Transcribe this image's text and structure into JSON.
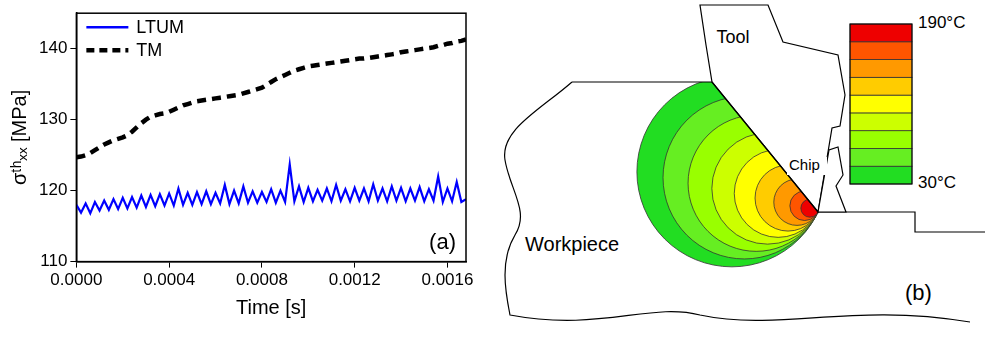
{
  "chart_data": {
    "type": "line",
    "x_label": "Time [s]",
    "y_label": "σᵗʰₓₓ [MPa]",
    "panel_label": "(a)",
    "x": [
      0,
      2e-05,
      4e-05,
      6e-05,
      8e-05,
      0.0001,
      0.00012,
      0.00014,
      0.00016,
      0.00018,
      0.0002,
      0.00022,
      0.00024,
      0.00026,
      0.00028,
      0.0003,
      0.00032,
      0.00034,
      0.00036,
      0.00038,
      0.0004,
      0.00042,
      0.00044,
      0.00046,
      0.00048,
      0.0005,
      0.00052,
      0.00054,
      0.00056,
      0.00058,
      0.0006,
      0.00062,
      0.00064,
      0.00066,
      0.00068,
      0.0007,
      0.00072,
      0.00074,
      0.00076,
      0.00078,
      0.0008,
      0.00082,
      0.00084,
      0.00086,
      0.00088,
      0.0009,
      0.00092,
      0.00094,
      0.00096,
      0.00098,
      0.001,
      0.00102,
      0.00104,
      0.00106,
      0.00108,
      0.0011,
      0.00112,
      0.00114,
      0.00116,
      0.00118,
      0.0012,
      0.00122,
      0.00124,
      0.00126,
      0.00128,
      0.0013,
      0.00132,
      0.00134,
      0.00136,
      0.00138,
      0.0014,
      0.00142,
      0.00144,
      0.00146,
      0.00148,
      0.0015,
      0.00152,
      0.00154,
      0.00156,
      0.00158,
      0.0016,
      0.00162,
      0.00164,
      0.00166,
      0.00168
    ],
    "series": [
      {
        "name": "LTUM",
        "color": "#0000ff",
        "line_style": "solid",
        "values": [
          118.0,
          116.9,
          118.2,
          116.8,
          118.4,
          117.2,
          118.6,
          117.3,
          118.8,
          117.4,
          119.0,
          117.5,
          119.1,
          117.6,
          119.3,
          117.7,
          119.4,
          117.8,
          119.5,
          117.9,
          119.6,
          117.9,
          120.3,
          118.0,
          119.7,
          118.0,
          119.8,
          118.1,
          119.9,
          118.1,
          119.7,
          118.2,
          120.8,
          118.1,
          120.0,
          118.2,
          120.6,
          118.3,
          119.9,
          118.3,
          119.8,
          118.4,
          120.2,
          118.3,
          120.0,
          118.4,
          123.7,
          118.5,
          120.6,
          118.4,
          120.4,
          118.5,
          120.1,
          118.6,
          120.3,
          118.5,
          120.8,
          118.6,
          120.2,
          118.5,
          120.4,
          118.6,
          120.3,
          118.5,
          120.9,
          118.6,
          120.3,
          118.5,
          120.6,
          118.6,
          120.4,
          118.5,
          120.3,
          118.6,
          120.5,
          118.5,
          120.2,
          118.6,
          122.0,
          118.4,
          120.3,
          118.5,
          121.2,
          118.4,
          118.8
        ]
      },
      {
        "name": "TM",
        "color": "#000000",
        "line_style": "dashed",
        "values": [
          124.7,
          124.8,
          125.0,
          125.3,
          125.7,
          126.1,
          126.5,
          126.8,
          127.1,
          127.3,
          127.5,
          127.8,
          128.3,
          128.9,
          129.5,
          130.0,
          130.4,
          130.6,
          130.8,
          130.9,
          131.1,
          131.4,
          131.7,
          132.0,
          132.2,
          132.4,
          132.6,
          132.7,
          132.8,
          132.9,
          133.0,
          133.1,
          133.2,
          133.3,
          133.4,
          133.5,
          133.7,
          133.9,
          134.1,
          134.3,
          134.5,
          134.9,
          135.3,
          135.7,
          136.0,
          136.3,
          136.6,
          136.9,
          137.1,
          137.3,
          137.5,
          137.6,
          137.7,
          137.8,
          137.9,
          138.0,
          138.1,
          138.2,
          138.3,
          138.4,
          138.5,
          138.6,
          138.6,
          138.7,
          138.8,
          138.9,
          139.0,
          139.1,
          139.2,
          139.3,
          139.5,
          139.6,
          139.7,
          139.8,
          139.9,
          140.0,
          140.1,
          140.2,
          140.4,
          140.5,
          140.7,
          140.8,
          141.0,
          141.1,
          141.3
        ]
      }
    ],
    "xlim": [
      0,
      0.00168
    ],
    "xticks": [
      {
        "value": 0,
        "label": "0.0000"
      },
      0.0004,
      0.0008,
      0.0012,
      0.0016
    ],
    "ylim": [
      110,
      145
    ],
    "yticks": [
      110,
      120,
      130,
      140
    ],
    "grid": false,
    "legend": "upper left"
  },
  "diagram": {
    "panel_label": "(b)",
    "labels": {
      "tool": "Tool",
      "workpiece": "Workpiece",
      "chip": "Chip"
    },
    "colorbar": {
      "range": [
        30,
        190
      ],
      "ticks": [
        {
          "value": 190,
          "label": "190°C"
        },
        {
          "value": 30,
          "label": "30°C"
        }
      ],
      "colors": [
        "#22dd22",
        "#66ee22",
        "#99ff00",
        "#ccff00",
        "#ffff00",
        "#ffcc00",
        "#ff9900",
        "#ff5500",
        "#ee0000"
      ]
    }
  }
}
